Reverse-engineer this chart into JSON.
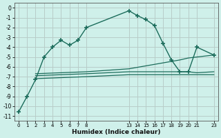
{
  "xlabel": "Humidex (Indice chaleur)",
  "bg_color": "#cff0ea",
  "grid_color": "#b8ccc8",
  "line_color": "#1a6b5a",
  "main_x": [
    0,
    1,
    2,
    3,
    4,
    5,
    6,
    7,
    8,
    13,
    14,
    15,
    16,
    17,
    18,
    19,
    20,
    21,
    23
  ],
  "main_y": [
    -10.6,
    -9.0,
    -7.3,
    -5.0,
    -4.0,
    -3.3,
    -3.8,
    -3.3,
    -2.0,
    -0.3,
    -0.8,
    -1.2,
    -1.8,
    -3.6,
    -5.3,
    -6.5,
    -6.5,
    -4.0,
    -4.8
  ],
  "flat1_x": [
    2,
    8,
    13,
    19,
    20,
    21,
    23
  ],
  "flat1_y": [
    -6.7,
    -6.5,
    -6.2,
    -5.3,
    -5.1,
    -5.0,
    -4.8
  ],
  "flat2_x": [
    2,
    8,
    13,
    19,
    20,
    21,
    23
  ],
  "flat2_y": [
    -6.9,
    -6.7,
    -6.5,
    -6.5,
    -6.5,
    -6.6,
    -6.5
  ],
  "flat3_x": [
    2,
    8,
    13,
    19,
    20,
    21,
    23
  ],
  "flat3_y": [
    -7.2,
    -7.0,
    -6.8,
    -6.8,
    -6.8,
    -6.8,
    -6.8
  ],
  "xticks": [
    0,
    1,
    2,
    3,
    4,
    5,
    6,
    7,
    8,
    13,
    14,
    15,
    16,
    17,
    18,
    19,
    20,
    21,
    23
  ],
  "yticks": [
    0,
    -1,
    -2,
    -3,
    -4,
    -5,
    -6,
    -7,
    -8,
    -9,
    -10,
    -11
  ],
  "ylim": [
    -11.5,
    0.5
  ],
  "xlim": [
    -0.5,
    23.5
  ]
}
